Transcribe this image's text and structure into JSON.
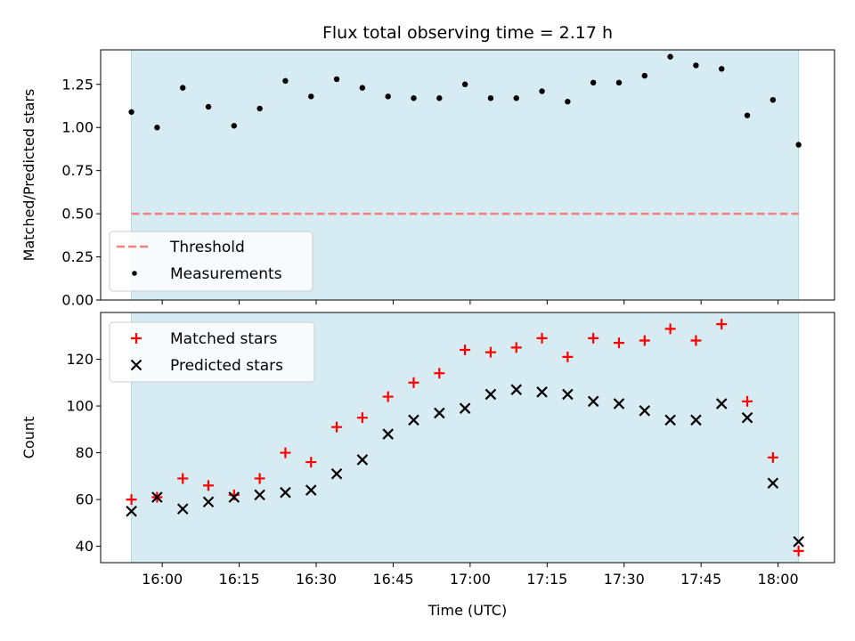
{
  "title": "Flux total observing time = 2.17 h",
  "xlabel": "Time (UTC)",
  "colors": {
    "shade": "#add8e6",
    "threshold": "#f08080",
    "measurements": "#000000",
    "matched": "#ff0000",
    "predicted": "#000000"
  },
  "chart_data": [
    {
      "type": "scatter",
      "ylabel": "Matched/Predicted stars",
      "ylim": [
        0,
        1.45
      ],
      "yticks": [
        0.0,
        0.25,
        0.5,
        0.75,
        1.0,
        1.25
      ],
      "ytick_labels": [
        "0.00",
        "0.25",
        "0.50",
        "0.75",
        "1.00",
        "1.25"
      ],
      "shaded_span": [
        "15:54",
        "18:04"
      ],
      "threshold": 0.5,
      "legend": {
        "placement": "lower left",
        "entries": [
          {
            "label": "Threshold",
            "style": "dashed-line"
          },
          {
            "label": "Measurements",
            "style": "dot"
          }
        ]
      },
      "series": [
        {
          "name": "Measurements",
          "x": [
            "15:54",
            "15:59",
            "16:04",
            "16:09",
            "16:14",
            "16:19",
            "16:24",
            "16:29",
            "16:34",
            "16:39",
            "16:44",
            "16:49",
            "16:54",
            "16:59",
            "17:04",
            "17:09",
            "17:14",
            "17:19",
            "17:24",
            "17:29",
            "17:34",
            "17:39",
            "17:44",
            "17:49",
            "17:54",
            "17:59",
            "18:04"
          ],
          "y": [
            1.09,
            1.0,
            1.23,
            1.12,
            1.01,
            1.11,
            1.27,
            1.18,
            1.28,
            1.23,
            1.18,
            1.17,
            1.17,
            1.25,
            1.17,
            1.17,
            1.21,
            1.15,
            1.26,
            1.26,
            1.3,
            1.41,
            1.36,
            1.34,
            1.07,
            1.16,
            0.9
          ]
        }
      ]
    },
    {
      "type": "scatter",
      "ylabel": "Count",
      "ylim": [
        33,
        140
      ],
      "yticks": [
        40,
        60,
        80,
        100,
        120
      ],
      "ytick_labels": [
        "40",
        "60",
        "80",
        "100",
        "120"
      ],
      "xlim": [
        "15:48",
        "18:11"
      ],
      "xticks": [
        "16:00",
        "16:15",
        "16:30",
        "16:45",
        "17:00",
        "17:15",
        "17:30",
        "17:45",
        "18:00"
      ],
      "shaded_span": [
        "15:54",
        "18:04"
      ],
      "legend": {
        "placement": "upper left",
        "entries": [
          {
            "label": "Matched stars",
            "style": "plus"
          },
          {
            "label": "Predicted stars",
            "style": "cross"
          }
        ]
      },
      "series": [
        {
          "name": "Matched stars",
          "x": [
            "15:54",
            "15:59",
            "16:04",
            "16:09",
            "16:14",
            "16:19",
            "16:24",
            "16:29",
            "16:34",
            "16:39",
            "16:44",
            "16:49",
            "16:54",
            "16:59",
            "17:04",
            "17:09",
            "17:14",
            "17:19",
            "17:24",
            "17:29",
            "17:34",
            "17:39",
            "17:44",
            "17:49",
            "17:54",
            "17:59",
            "18:04"
          ],
          "y": [
            60,
            61,
            69,
            66,
            62,
            69,
            80,
            76,
            91,
            95,
            104,
            110,
            114,
            124,
            123,
            125,
            129,
            121,
            129,
            127,
            128,
            133,
            128,
            135,
            102,
            78,
            38
          ]
        },
        {
          "name": "Predicted stars",
          "x": [
            "15:54",
            "15:59",
            "16:04",
            "16:09",
            "16:14",
            "16:19",
            "16:24",
            "16:29",
            "16:34",
            "16:39",
            "16:44",
            "16:49",
            "16:54",
            "16:59",
            "17:04",
            "17:09",
            "17:14",
            "17:19",
            "17:24",
            "17:29",
            "17:34",
            "17:39",
            "17:44",
            "17:49",
            "17:54",
            "17:59",
            "18:04"
          ],
          "y": [
            55,
            61,
            56,
            59,
            61,
            62,
            63,
            64,
            71,
            77,
            88,
            94,
            97,
            99,
            105,
            107,
            106,
            105,
            102,
            101,
            98,
            94,
            94,
            101,
            95,
            67,
            42
          ]
        }
      ]
    }
  ]
}
